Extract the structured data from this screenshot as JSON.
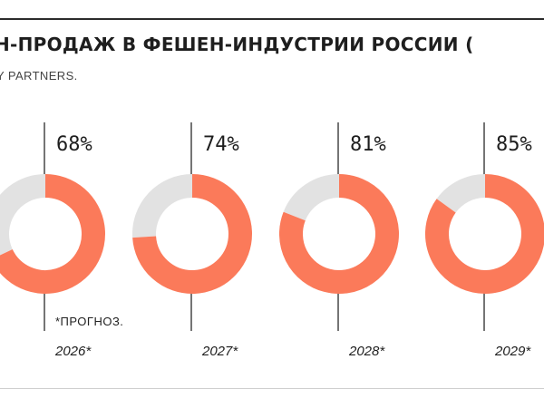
{
  "header": {
    "title": "Н-ПРОДАЖ В ФЕШЕН-ИНДУСТРИИ РОССИИ (",
    "source": "Y PARTNERS."
  },
  "chart_data": {
    "type": "donut",
    "categories": [
      "2026*",
      "2027*",
      "2028*",
      "2029*"
    ],
    "values": [
      68,
      74,
      81,
      85
    ],
    "labels": [
      "68%",
      "74%",
      "81%",
      "85%"
    ],
    "max": 100,
    "annotation": "*ПРОГНОЗ.",
    "colors": {
      "filled": "#fb7a5a",
      "remaining": "#e2e2e2",
      "line": "#2b2b2b"
    }
  }
}
